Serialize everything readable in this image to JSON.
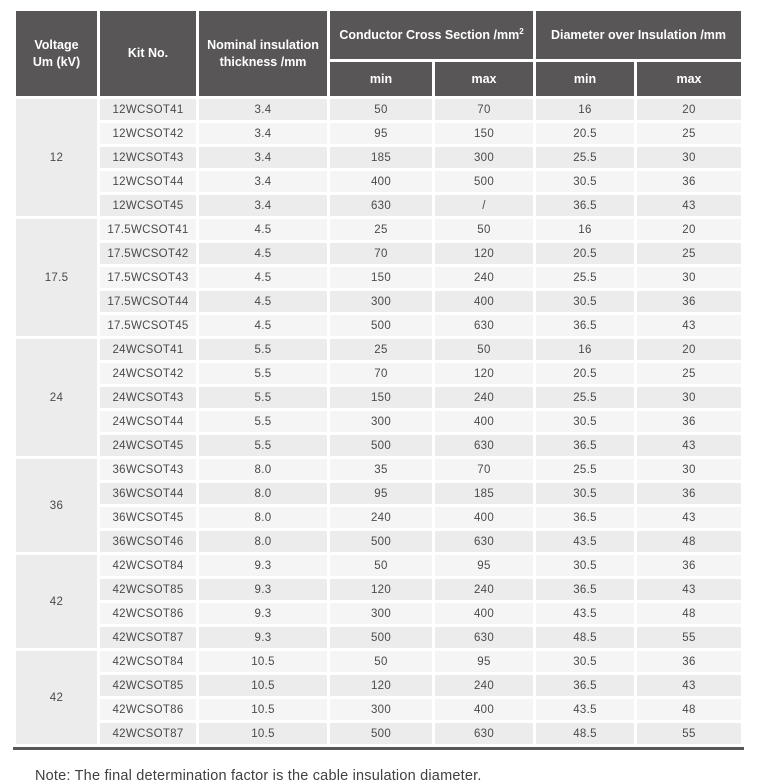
{
  "header": {
    "voltage_line1": "Voltage",
    "voltage_line2": "Um (kV)",
    "kit_no": "Kit No.",
    "nominal": "Nominal insulation thickness /mm",
    "ccs": "Conductor Cross Section /mm",
    "ccs_sup": "2",
    "doi": "Diameter over Insulation /mm",
    "min": "min",
    "max": "max"
  },
  "groups": [
    {
      "voltage": "12",
      "rows": [
        [
          "12WCSOT41",
          "3.4",
          "50",
          "70",
          "16",
          "20"
        ],
        [
          "12WCSOT42",
          "3.4",
          "95",
          "150",
          "20.5",
          "25"
        ],
        [
          "12WCSOT43",
          "3.4",
          "185",
          "300",
          "25.5",
          "30"
        ],
        [
          "12WCSOT44",
          "3.4",
          "400",
          "500",
          "30.5",
          "36"
        ],
        [
          "12WCSOT45",
          "3.4",
          "630",
          "/",
          "36.5",
          "43"
        ]
      ]
    },
    {
      "voltage": "17.5",
      "rows": [
        [
          "17.5WCSOT41",
          "4.5",
          "25",
          "50",
          "16",
          "20"
        ],
        [
          "17.5WCSOT42",
          "4.5",
          "70",
          "120",
          "20.5",
          "25"
        ],
        [
          "17.5WCSOT43",
          "4.5",
          "150",
          "240",
          "25.5",
          "30"
        ],
        [
          "17.5WCSOT44",
          "4.5",
          "300",
          "400",
          "30.5",
          "36"
        ],
        [
          "17.5WCSOT45",
          "4.5",
          "500",
          "630",
          "36.5",
          "43"
        ]
      ]
    },
    {
      "voltage": "24",
      "rows": [
        [
          "24WCSOT41",
          "5.5",
          "25",
          "50",
          "16",
          "20"
        ],
        [
          "24WCSOT42",
          "5.5",
          "70",
          "120",
          "20.5",
          "25"
        ],
        [
          "24WCSOT43",
          "5.5",
          "150",
          "240",
          "25.5",
          "30"
        ],
        [
          "24WCSOT44",
          "5.5",
          "300",
          "400",
          "30.5",
          "36"
        ],
        [
          "24WCSOT45",
          "5.5",
          "500",
          "630",
          "36.5",
          "43"
        ]
      ]
    },
    {
      "voltage": "36",
      "rows": [
        [
          "36WCSOT43",
          "8.0",
          "35",
          "70",
          "25.5",
          "30"
        ],
        [
          "36WCSOT44",
          "8.0",
          "95",
          "185",
          "30.5",
          "36"
        ],
        [
          "36WCSOT45",
          "8.0",
          "240",
          "400",
          "36.5",
          "43"
        ],
        [
          "36WCSOT46",
          "8.0",
          "500",
          "630",
          "43.5",
          "48"
        ]
      ]
    },
    {
      "voltage": "42",
      "rows": [
        [
          "42WCSOT84",
          "9.3",
          "50",
          "95",
          "30.5",
          "36"
        ],
        [
          "42WCSOT85",
          "9.3",
          "120",
          "240",
          "36.5",
          "43"
        ],
        [
          "42WCSOT86",
          "9.3",
          "300",
          "400",
          "43.5",
          "48"
        ],
        [
          "42WCSOT87",
          "9.3",
          "500",
          "630",
          "48.5",
          "55"
        ]
      ]
    },
    {
      "voltage": "42",
      "rows": [
        [
          "42WCSOT84",
          "10.5",
          "50",
          "95",
          "30.5",
          "36"
        ],
        [
          "42WCSOT85",
          "10.5",
          "120",
          "240",
          "36.5",
          "43"
        ],
        [
          "42WCSOT86",
          "10.5",
          "300",
          "400",
          "43.5",
          "48"
        ],
        [
          "42WCSOT87",
          "10.5",
          "500",
          "630",
          "48.5",
          "55"
        ]
      ]
    }
  ],
  "note": "Note: The final determination factor is the cable insulation diameter.",
  "colors": {
    "header_bg": "#595657",
    "row_gray": "#ececed",
    "row_light": "#f6f5f5",
    "voltage_cell_bg": "#ececec",
    "cell_text": "#4a4a4a",
    "border": "#ffffff",
    "bottom_rule": "#595657"
  }
}
